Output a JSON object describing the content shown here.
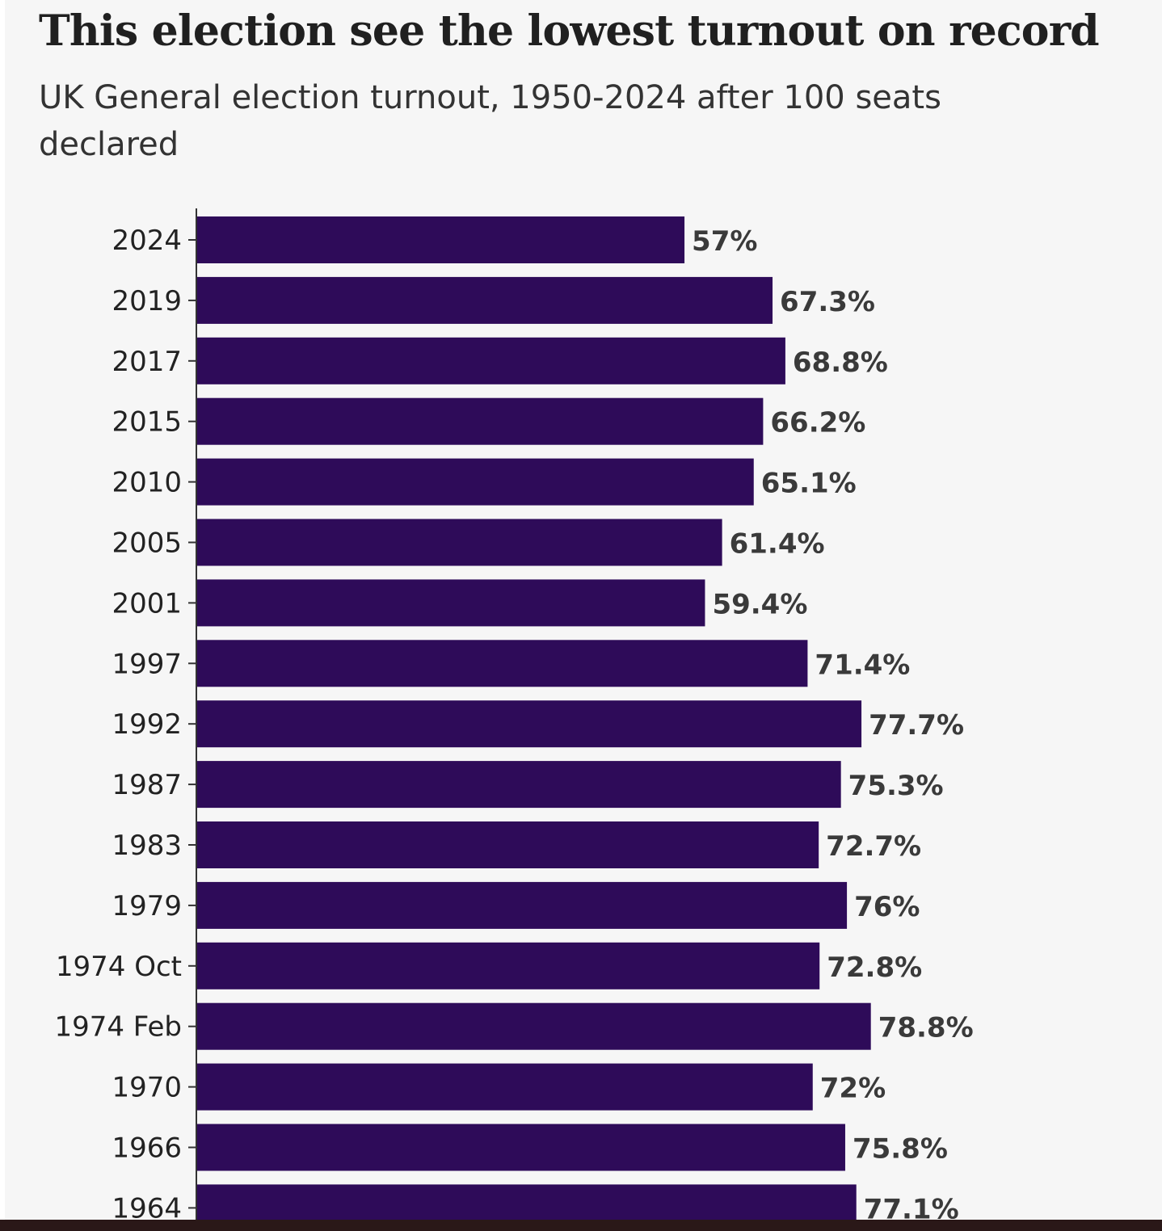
{
  "chart_data": {
    "type": "bar",
    "orientation": "horizontal",
    "title": "This election see the lowest turnout on record",
    "subtitle": "UK General election turnout, 1950-2024 after 100 seats declared",
    "categories": [
      "2024",
      "2019",
      "2017",
      "2015",
      "2010",
      "2005",
      "2001",
      "1997",
      "1992",
      "1987",
      "1983",
      "1979",
      "1974 Oct",
      "1974 Feb",
      "1970",
      "1966",
      "1964"
    ],
    "values": [
      57,
      67.3,
      68.8,
      66.2,
      65.1,
      61.4,
      59.4,
      71.4,
      77.7,
      75.3,
      72.7,
      76,
      72.8,
      78.8,
      72,
      75.8,
      77.1
    ],
    "value_labels": [
      "57%",
      "67.3%",
      "68.8%",
      "66.2%",
      "65.1%",
      "61.4%",
      "59.4%",
      "71.4%",
      "77.7%",
      "75.3%",
      "72.7%",
      "76%",
      "72.8%",
      "78.8%",
      "72%",
      "75.8%",
      "77.1%"
    ],
    "xlim": [
      0,
      100
    ],
    "unit": "%",
    "grid": false,
    "legend": "none",
    "bar_color": "#2e0b59"
  }
}
